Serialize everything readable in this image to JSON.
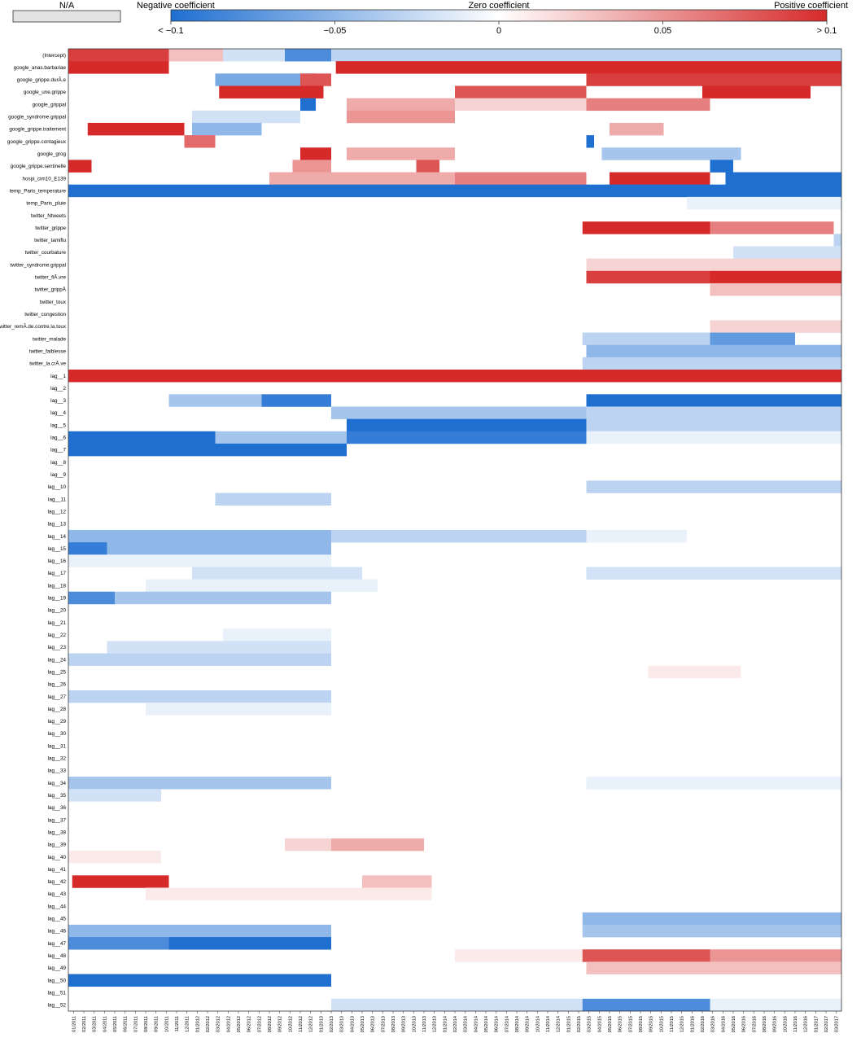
{
  "chart_data": {
    "type": "heatmap",
    "title": "",
    "xlabel": "",
    "ylabel": "",
    "na_label": "N/A",
    "legend": {
      "labels": [
        "Negative coefficient",
        "Zero coefficient",
        "Positive coefficient"
      ],
      "ticks": [
        "< −0.1",
        "−0.05",
        "0",
        "0.05",
        "> 0.1"
      ],
      "tick_values": [
        -0.1,
        -0.05,
        0,
        0.05,
        0.1
      ],
      "colors": {
        "negative": "#1f6fd1",
        "zero": "#ffffff",
        "positive": "#d62a2a",
        "na": "#e3e3e3"
      }
    },
    "value_range": [
      -0.1,
      0.1
    ],
    "grid": false,
    "rows": [
      "(Intercept)",
      "google_anas.barbariae",
      "google_grippe.durÃ.e",
      "google_une.grippe",
      "google_grippal",
      "google_syndrome.grippal",
      "google_grippe.traitement",
      "google_grippe.contagieux",
      "google_grog",
      "google_grippe.sentinelle",
      "hospi_cim10_E139",
      "temp_Paris_temperature",
      "temp_Paris_pluie",
      "twitter_Ntweets",
      "twitter_grippe",
      "twitter_tamiflu",
      "twitter_courbature",
      "twitter_syndrome.grippal",
      "twitter_fiÃ.vre",
      "twitter_grippÃ",
      "twitter_toux",
      "twitter_congestion",
      "twitter_remÃ.de.contre.la.toux",
      "twitter_malade",
      "twitter_faiblesse",
      "twitter_la.crÃ.ve",
      "lag__1",
      "lag__2",
      "lag__3",
      "lag__4",
      "lag__5",
      "lag__6",
      "lag__7",
      "lag__8",
      "lag__9",
      "lag__10",
      "lag__11",
      "lag__12",
      "lag__13",
      "lag__14",
      "lag__15",
      "lag__16",
      "lag__17",
      "lag__18",
      "lag__19",
      "lag__20",
      "lag__21",
      "lag__22",
      "lag__23",
      "lag__24",
      "lag__25",
      "lag__26",
      "lag__27",
      "lag__28",
      "lag__29",
      "lag__30",
      "lag__31",
      "lag__32",
      "lag__33",
      "lag__34",
      "lag__35",
      "lag__36",
      "lag__37",
      "lag__38",
      "lag__39",
      "lag__40",
      "lag__41",
      "lag__42",
      "lag__43",
      "lag__44",
      "lag__45",
      "lag__46",
      "lag__47",
      "lag__48",
      "lag__49",
      "lag__50",
      "lag__51",
      "lag__52"
    ],
    "x_ticks": [
      "01/2011",
      "02/2011",
      "03/2011",
      "04/2011",
      "05/2011",
      "06/2011",
      "07/2011",
      "08/2011",
      "09/2011",
      "10/2011",
      "11/2011",
      "12/2011",
      "01/2012",
      "02/2012",
      "03/2012",
      "04/2012",
      "05/2012",
      "06/2012",
      "07/2012",
      "08/2012",
      "09/2012",
      "10/2012",
      "11/2012",
      "12/2012",
      "01/2013",
      "02/2013",
      "03/2013",
      "04/2013",
      "05/2013",
      "06/2013",
      "07/2013",
      "08/2013",
      "09/2013",
      "10/2013",
      "11/2013",
      "12/2013",
      "01/2014",
      "02/2014",
      "03/2014",
      "04/2014",
      "05/2014",
      "06/2014",
      "07/2014",
      "08/2014",
      "09/2014",
      "10/2014",
      "11/2014",
      "12/2014",
      "01/2015",
      "02/2015",
      "03/2015",
      "04/2015",
      "05/2015",
      "06/2015",
      "07/2015",
      "08/2015",
      "09/2015",
      "10/2015",
      "11/2015",
      "12/2015",
      "01/2016",
      "02/2016",
      "03/2016",
      "04/2016",
      "05/2016",
      "06/2016",
      "07/2016",
      "08/2016",
      "09/2016",
      "10/2016",
      "11/2016",
      "12/2016",
      "01/2017",
      "02/2017",
      "03/2017"
    ],
    "x_range": [
      "01/2011",
      "03/2017"
    ],
    "segments": [
      {
        "row": "(Intercept)",
        "from": 0.0,
        "to": 0.13,
        "value": 0.09
      },
      {
        "row": "(Intercept)",
        "from": 0.13,
        "to": 0.2,
        "value": 0.03
      },
      {
        "row": "(Intercept)",
        "from": 0.2,
        "to": 0.28,
        "value": -0.02
      },
      {
        "row": "(Intercept)",
        "from": 0.28,
        "to": 0.34,
        "value": -0.08
      },
      {
        "row": "(Intercept)",
        "from": 0.34,
        "to": 1.0,
        "value": -0.03
      },
      {
        "row": "google_anas.barbariae",
        "from": 0.0,
        "to": 0.13,
        "value": 0.1
      },
      {
        "row": "google_anas.barbariae",
        "from": 0.346,
        "to": 1.0,
        "value": 0.1
      },
      {
        "row": "google_grippe.durÃ.e",
        "from": 0.19,
        "to": 0.32,
        "value": -0.06
      },
      {
        "row": "google_grippe.durÃ.e",
        "from": 0.3,
        "to": 0.34,
        "value": 0.08
      },
      {
        "row": "google_grippe.durÃ.e",
        "from": 0.67,
        "to": 1.0,
        "value": 0.09
      },
      {
        "row": "google_une.grippe",
        "from": 0.195,
        "to": 0.33,
        "value": 0.1
      },
      {
        "row": "google_une.grippe",
        "from": 0.5,
        "to": 0.67,
        "value": 0.08
      },
      {
        "row": "google_une.grippe",
        "from": 0.82,
        "to": 0.96,
        "value": 0.1
      },
      {
        "row": "google_grippal",
        "from": 0.3,
        "to": 0.32,
        "value": -0.1
      },
      {
        "row": "google_grippal",
        "from": 0.36,
        "to": 0.5,
        "value": 0.04
      },
      {
        "row": "google_grippal",
        "from": 0.5,
        "to": 0.67,
        "value": 0.02
      },
      {
        "row": "google_grippal",
        "from": 0.67,
        "to": 0.83,
        "value": 0.06
      },
      {
        "row": "google_syndrome.grippal",
        "from": 0.16,
        "to": 0.3,
        "value": -0.02
      },
      {
        "row": "google_syndrome.grippal",
        "from": 0.36,
        "to": 0.5,
        "value": 0.05
      },
      {
        "row": "google_grippe.traitement",
        "from": 0.025,
        "to": 0.15,
        "value": 0.1
      },
      {
        "row": "google_grippe.traitement",
        "from": 0.16,
        "to": 0.25,
        "value": -0.05
      },
      {
        "row": "google_grippe.traitement",
        "from": 0.7,
        "to": 0.77,
        "value": 0.04
      },
      {
        "row": "google_grippe.contagieux",
        "from": 0.15,
        "to": 0.19,
        "value": 0.07
      },
      {
        "row": "google_grippe.contagieux",
        "from": 0.67,
        "to": 0.68,
        "value": -0.1
      },
      {
        "row": "google_grog",
        "from": 0.3,
        "to": 0.34,
        "value": 0.1
      },
      {
        "row": "google_grog",
        "from": 0.36,
        "to": 0.5,
        "value": 0.04
      },
      {
        "row": "google_grog",
        "from": 0.69,
        "to": 0.87,
        "value": -0.04
      },
      {
        "row": "google_grippe.sentinelle",
        "from": 0.0,
        "to": 0.03,
        "value": 0.1
      },
      {
        "row": "google_grippe.sentinelle",
        "from": 0.29,
        "to": 0.34,
        "value": 0.05
      },
      {
        "row": "google_grippe.sentinelle",
        "from": 0.45,
        "to": 0.48,
        "value": 0.08
      },
      {
        "row": "google_grippe.sentinelle",
        "from": 0.83,
        "to": 0.86,
        "value": -0.1
      },
      {
        "row": "hospi_cim10_E139",
        "from": 0.26,
        "to": 0.5,
        "value": 0.04
      },
      {
        "row": "hospi_cim10_E139",
        "from": 0.5,
        "to": 0.67,
        "value": 0.06
      },
      {
        "row": "hospi_cim10_E139",
        "from": 0.7,
        "to": 0.83,
        "value": 0.1
      },
      {
        "row": "hospi_cim10_E139",
        "from": 0.85,
        "to": 1.0,
        "value": -0.1
      },
      {
        "row": "temp_Paris_temperature",
        "from": 0.0,
        "to": 1.0,
        "value": -0.1
      },
      {
        "row": "temp_Paris_pluie",
        "from": 0.8,
        "to": 1.0,
        "value": -0.01
      },
      {
        "row": "twitter_grippe",
        "from": 0.665,
        "to": 0.83,
        "value": 0.1
      },
      {
        "row": "twitter_grippe",
        "from": 0.83,
        "to": 0.99,
        "value": 0.06
      },
      {
        "row": "twitter_tamiflu",
        "from": 0.99,
        "to": 1.0,
        "value": -0.03
      },
      {
        "row": "twitter_courbature",
        "from": 0.86,
        "to": 1.0,
        "value": -0.02
      },
      {
        "row": "twitter_syndrome.grippal",
        "from": 0.67,
        "to": 1.0,
        "value": 0.02
      },
      {
        "row": "twitter_fiÃ.vre",
        "from": 0.67,
        "to": 0.83,
        "value": 0.09
      },
      {
        "row": "twitter_fiÃ.vre",
        "from": 0.83,
        "to": 1.0,
        "value": 0.1
      },
      {
        "row": "twitter_grippÃ",
        "from": 0.83,
        "to": 1.0,
        "value": 0.03
      },
      {
        "row": "twitter_remÃ.de.contre.la.toux",
        "from": 0.83,
        "to": 1.0,
        "value": 0.02
      },
      {
        "row": "twitter_malade",
        "from": 0.665,
        "to": 0.83,
        "value": -0.03
      },
      {
        "row": "twitter_malade",
        "from": 0.83,
        "to": 0.94,
        "value": -0.07
      },
      {
        "row": "twitter_faiblesse",
        "from": 0.67,
        "to": 1.0,
        "value": -0.05
      },
      {
        "row": "twitter_la.crÃ.ve",
        "from": 0.665,
        "to": 1.0,
        "value": -0.03
      },
      {
        "row": "lag__1",
        "from": 0.0,
        "to": 1.0,
        "value": 0.1
      },
      {
        "row": "lag__3",
        "from": 0.13,
        "to": 0.25,
        "value": -0.04
      },
      {
        "row": "lag__3",
        "from": 0.25,
        "to": 0.34,
        "value": -0.09
      },
      {
        "row": "lag__3",
        "from": 0.67,
        "to": 1.0,
        "value": -0.1
      },
      {
        "row": "lag__4",
        "from": 0.34,
        "to": 0.67,
        "value": -0.04
      },
      {
        "row": "lag__4",
        "from": 0.67,
        "to": 1.0,
        "value": -0.03
      },
      {
        "row": "lag__5",
        "from": 0.36,
        "to": 0.67,
        "value": -0.1
      },
      {
        "row": "lag__5",
        "from": 0.67,
        "to": 1.0,
        "value": -0.03
      },
      {
        "row": "lag__6",
        "from": 0.0,
        "to": 0.19,
        "value": -0.1
      },
      {
        "row": "lag__6",
        "from": 0.19,
        "to": 0.36,
        "value": -0.04
      },
      {
        "row": "lag__6",
        "from": 0.36,
        "to": 0.67,
        "value": -0.09
      },
      {
        "row": "lag__6",
        "from": 0.67,
        "to": 1.0,
        "value": -0.01
      },
      {
        "row": "lag__7",
        "from": 0.0,
        "to": 0.36,
        "value": -0.1
      },
      {
        "row": "lag__10",
        "from": 0.67,
        "to": 1.0,
        "value": -0.03
      },
      {
        "row": "lag__11",
        "from": 0.19,
        "to": 0.34,
        "value": -0.03
      },
      {
        "row": "lag__14",
        "from": 0.0,
        "to": 0.34,
        "value": -0.05
      },
      {
        "row": "lag__14",
        "from": 0.34,
        "to": 0.67,
        "value": -0.03
      },
      {
        "row": "lag__14",
        "from": 0.67,
        "to": 0.8,
        "value": -0.01
      },
      {
        "row": "lag__15",
        "from": 0.0,
        "to": 0.05,
        "value": -0.09
      },
      {
        "row": "lag__15",
        "from": 0.05,
        "to": 0.34,
        "value": -0.05
      },
      {
        "row": "lag__16",
        "from": 0.0,
        "to": 0.34,
        "value": -0.01
      },
      {
        "row": "lag__17",
        "from": 0.16,
        "to": 0.38,
        "value": -0.02
      },
      {
        "row": "lag__17",
        "from": 0.67,
        "to": 1.0,
        "value": -0.02
      },
      {
        "row": "lag__18",
        "from": 0.1,
        "to": 0.4,
        "value": -0.01
      },
      {
        "row": "lag__19",
        "from": 0.0,
        "to": 0.06,
        "value": -0.08
      },
      {
        "row": "lag__19",
        "from": 0.06,
        "to": 0.34,
        "value": -0.04
      },
      {
        "row": "lag__22",
        "from": 0.2,
        "to": 0.34,
        "value": -0.01
      },
      {
        "row": "lag__23",
        "from": 0.05,
        "to": 0.34,
        "value": -0.02
      },
      {
        "row": "lag__24",
        "from": 0.0,
        "to": 0.34,
        "value": -0.03
      },
      {
        "row": "lag__25",
        "from": 0.75,
        "to": 0.87,
        "value": 0.01
      },
      {
        "row": "lag__27",
        "from": 0.0,
        "to": 0.34,
        "value": -0.03
      },
      {
        "row": "lag__28",
        "from": 0.1,
        "to": 0.34,
        "value": -0.01
      },
      {
        "row": "lag__34",
        "from": 0.0,
        "to": 0.34,
        "value": -0.04
      },
      {
        "row": "lag__34",
        "from": 0.67,
        "to": 1.0,
        "value": -0.01
      },
      {
        "row": "lag__35",
        "from": 0.0,
        "to": 0.12,
        "value": -0.02
      },
      {
        "row": "lag__39",
        "from": 0.34,
        "to": 0.46,
        "value": 0.04
      },
      {
        "row": "lag__39",
        "from": 0.28,
        "to": 0.34,
        "value": 0.02
      },
      {
        "row": "lag__40",
        "from": 0.0,
        "to": 0.12,
        "value": 0.01
      },
      {
        "row": "lag__42",
        "from": 0.005,
        "to": 0.13,
        "value": 0.1
      },
      {
        "row": "lag__42",
        "from": 0.38,
        "to": 0.47,
        "value": 0.03
      },
      {
        "row": "lag__43",
        "from": 0.1,
        "to": 0.47,
        "value": 0.01
      },
      {
        "row": "lag__45",
        "from": 0.665,
        "to": 1.0,
        "value": -0.05
      },
      {
        "row": "lag__46",
        "from": 0.0,
        "to": 0.34,
        "value": -0.05
      },
      {
        "row": "lag__46",
        "from": 0.665,
        "to": 1.0,
        "value": -0.04
      },
      {
        "row": "lag__47",
        "from": 0.0,
        "to": 0.13,
        "value": -0.08
      },
      {
        "row": "lag__47",
        "from": 0.13,
        "to": 0.34,
        "value": -0.1
      },
      {
        "row": "lag__48",
        "from": 0.5,
        "to": 0.665,
        "value": 0.01
      },
      {
        "row": "lag__48",
        "from": 0.665,
        "to": 0.83,
        "value": 0.08
      },
      {
        "row": "lag__48",
        "from": 0.83,
        "to": 1.0,
        "value": 0.05
      },
      {
        "row": "lag__49",
        "from": 0.67,
        "to": 1.0,
        "value": 0.03
      },
      {
        "row": "lag__50",
        "from": 0.0,
        "to": 0.34,
        "value": -0.1
      },
      {
        "row": "lag__52",
        "from": 0.34,
        "to": 0.665,
        "value": -0.02
      },
      {
        "row": "lag__52",
        "from": 0.665,
        "to": 0.83,
        "value": -0.08
      },
      {
        "row": "lag__52",
        "from": 0.83,
        "to": 1.0,
        "value": -0.01
      }
    ]
  }
}
